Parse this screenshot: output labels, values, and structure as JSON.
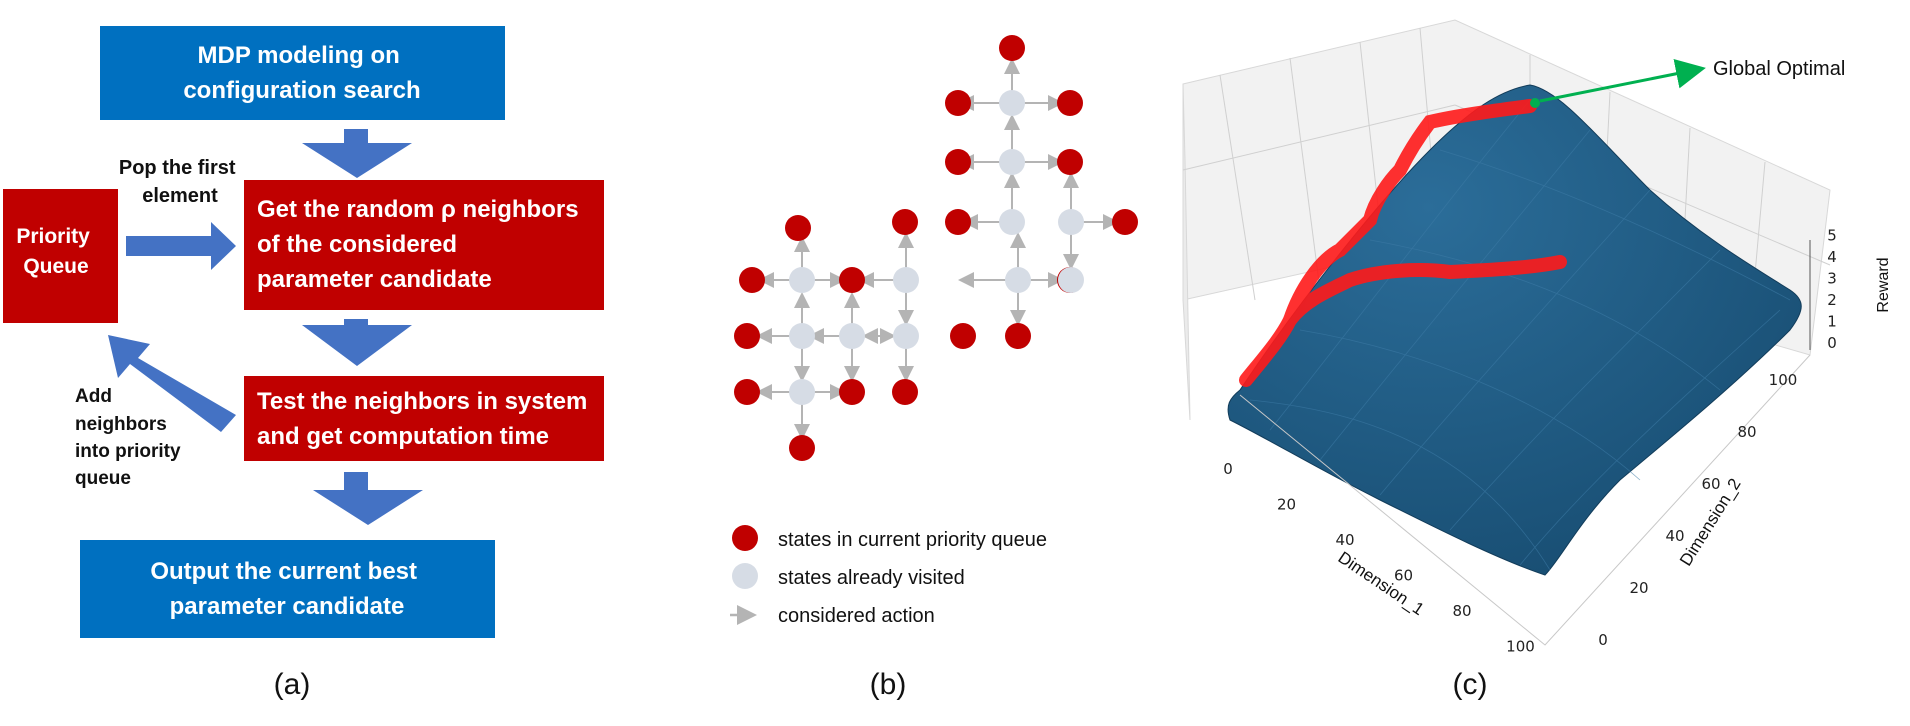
{
  "panel_a": {
    "caption": "(a)",
    "box_mdp": [
      "MDP modeling on",
      "configuration search"
    ],
    "box_queue": [
      "Priority",
      "Queue"
    ],
    "box_get": [
      "Get the random ρ neighbors",
      "of the considered",
      "parameter candidate"
    ],
    "box_test": [
      "Test the neighbors in system",
      "and get computation time"
    ],
    "box_output": [
      "Output the current best",
      "parameter candidate"
    ],
    "label_pop": [
      "Pop the first",
      "element"
    ],
    "label_add": [
      "Add",
      "neighbors",
      "into priority",
      "queue"
    ],
    "colors": {
      "blue": "#0070c0",
      "red": "#c00000",
      "arrow": "#4472c4"
    }
  },
  "panel_b": {
    "caption": "(b)",
    "legend": [
      "states in current priority queue",
      "states already visited",
      "considered action"
    ],
    "colors": {
      "queue": "#c00000",
      "visited": "#d6dce5",
      "arrow": "#b4b4b4"
    }
  },
  "panel_c": {
    "caption": "(c)",
    "annotation": "Global Optimal",
    "x_axis": {
      "label": "Dimension_1",
      "ticks": [
        "0",
        "20",
        "40",
        "60",
        "80",
        "100"
      ]
    },
    "y_axis": {
      "label": "Dimension_2",
      "ticks": [
        "0",
        "20",
        "40",
        "60",
        "80",
        "100"
      ]
    },
    "z_axis": {
      "label": "Reward",
      "ticks": [
        "0",
        "1",
        "2",
        "3",
        "4",
        "5"
      ]
    },
    "colors": {
      "surface": "#1f5f8b",
      "path": "#ff1a1a",
      "annotation_arrow": "#00b050"
    }
  }
}
